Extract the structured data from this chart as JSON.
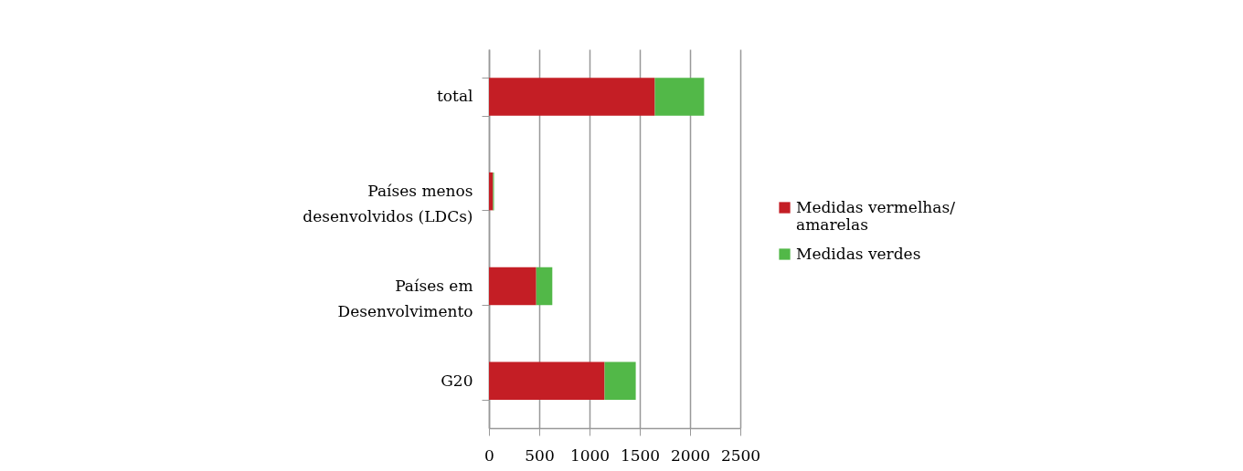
{
  "chart_data": {
    "type": "bar",
    "orientation": "horizontal",
    "stacked": true,
    "categories": [
      "total",
      "Países menos desenvolvidos (LDCs)",
      "Países em Desenvolvimento",
      "G20"
    ],
    "series": [
      {
        "name": "Medidas vermelhas/ amarelas",
        "color": "#c41e25",
        "values": [
          1650,
          40,
          470,
          1150
        ]
      },
      {
        "name": "Medidas verdes",
        "color": "#52b848",
        "values": [
          490,
          10,
          160,
          310
        ]
      }
    ],
    "xlim": [
      0,
      2500
    ],
    "xticks": [
      0,
      500,
      1000,
      1500,
      2000,
      2500
    ],
    "grid": "x",
    "legend": "right"
  }
}
